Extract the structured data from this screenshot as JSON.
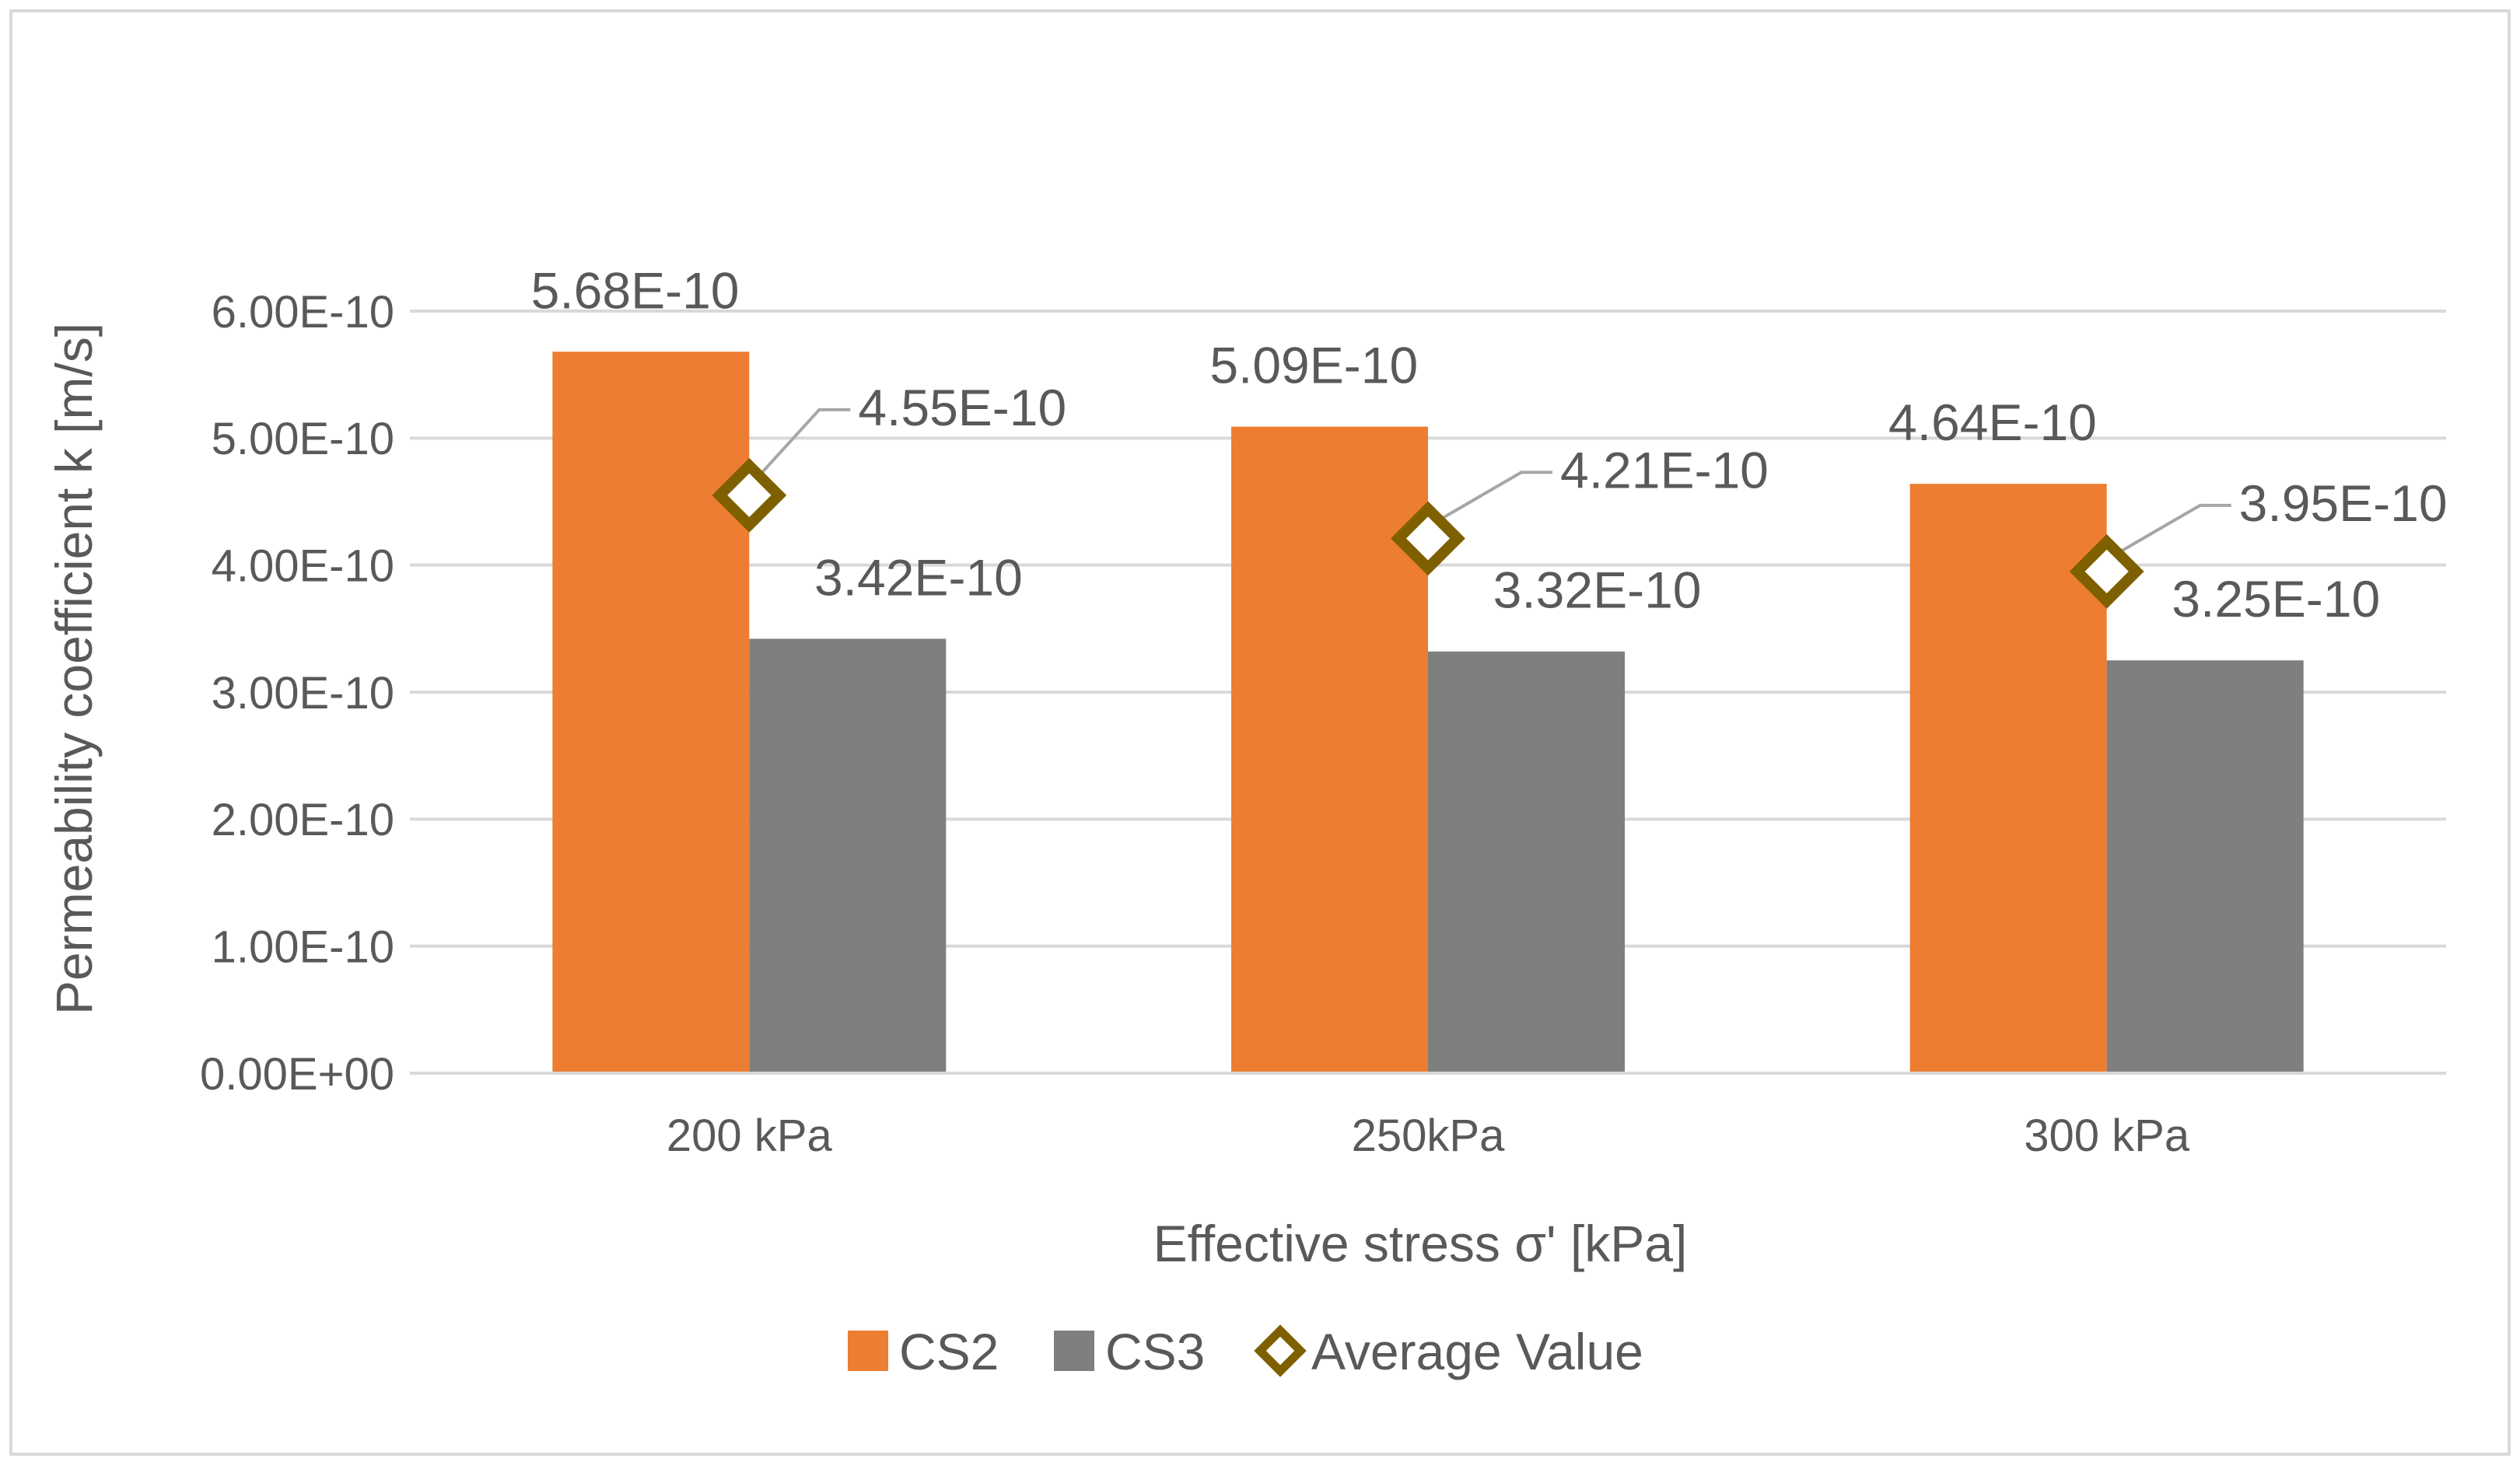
{
  "chart_data": {
    "type": "bar",
    "title": "",
    "categories": [
      "200 kPa",
      "250kPa",
      "300 kPa"
    ],
    "series": [
      {
        "name": "CS2",
        "kind": "bar",
        "color": "#ED7D31",
        "values": [
          5.68e-10,
          5.09e-10,
          4.64e-10
        ],
        "labels": [
          "5.68E-10",
          "5.09E-10",
          "4.64E-10"
        ]
      },
      {
        "name": "CS3",
        "kind": "bar",
        "color": "#7F7F7F",
        "values": [
          3.42e-10,
          3.32e-10,
          3.25e-10
        ],
        "labels": [
          "3.42E-10",
          "3.32E-10",
          "3.25E-10"
        ]
      },
      {
        "name": "Average Value",
        "kind": "marker",
        "marker": "diamond",
        "color": "#7F6000",
        "values": [
          4.55e-10,
          4.21e-10,
          3.95e-10
        ],
        "labels": [
          "4.55E-10",
          "4.21E-10",
          "3.95E-10"
        ]
      }
    ],
    "xlabel": "Effective stress σ' [kPa]",
    "ylabel": "Permeability coefficient k [m/s]",
    "ylim": [
      0,
      6e-10
    ],
    "yticks": [
      0,
      1e-10,
      2e-10,
      3e-10,
      4e-10,
      5e-10,
      6e-10
    ],
    "ytick_labels": [
      "0.00E+00",
      "1.00E-10",
      "2.00E-10",
      "3.00E-10",
      "4.00E-10",
      "5.00E-10",
      "6.00E-10"
    ],
    "grid": true,
    "legend_position": "bottom",
    "colors": {
      "grid": "#D9D9D9",
      "text": "#595959",
      "leader": "#A6A6A6",
      "frame": "#D9D9D9"
    }
  }
}
